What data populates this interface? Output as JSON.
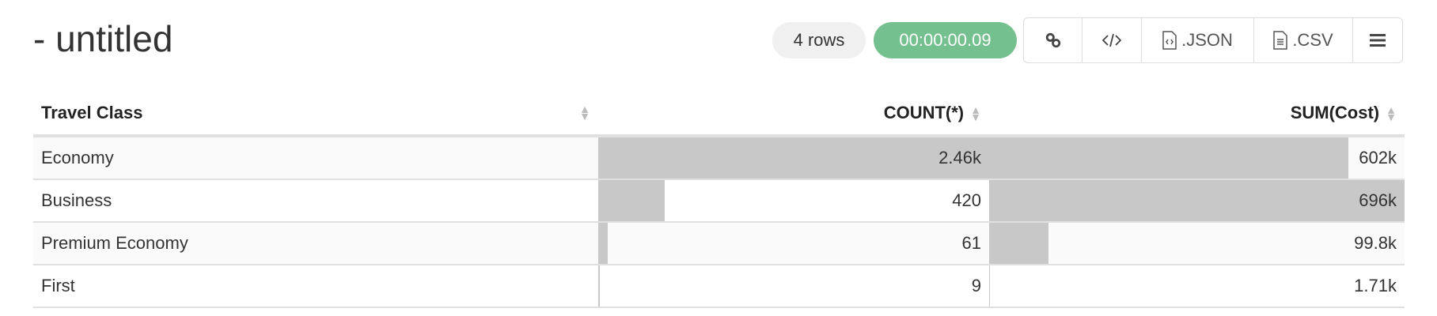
{
  "title": "- untitled",
  "status": {
    "rows": "4 rows",
    "timer": "00:00:00.09",
    "timer_color": "#75c08f"
  },
  "toolbar": {
    "link_icon": "link-icon",
    "embed_icon": "code-icon",
    "json_label": ".JSON",
    "csv_label": ".CSV",
    "menu_icon": "hamburger-menu-icon"
  },
  "table": {
    "columns": [
      "Travel Class",
      "COUNT(*)",
      "SUM(Cost)"
    ],
    "rows": [
      {
        "class": "Economy",
        "count": "2.46k",
        "sum": "602k",
        "count_value": 2460,
        "sum_value": 602000
      },
      {
        "class": "Business",
        "count": "420",
        "sum": "696k",
        "count_value": 420,
        "sum_value": 696000
      },
      {
        "class": "Premium Economy",
        "count": "61",
        "sum": "99.8k",
        "count_value": 61,
        "sum_value": 99800
      },
      {
        "class": "First",
        "count": "9",
        "sum": "1.71k",
        "count_value": 9,
        "sum_value": 1710
      }
    ],
    "bar_color": "#c8c8c8"
  }
}
